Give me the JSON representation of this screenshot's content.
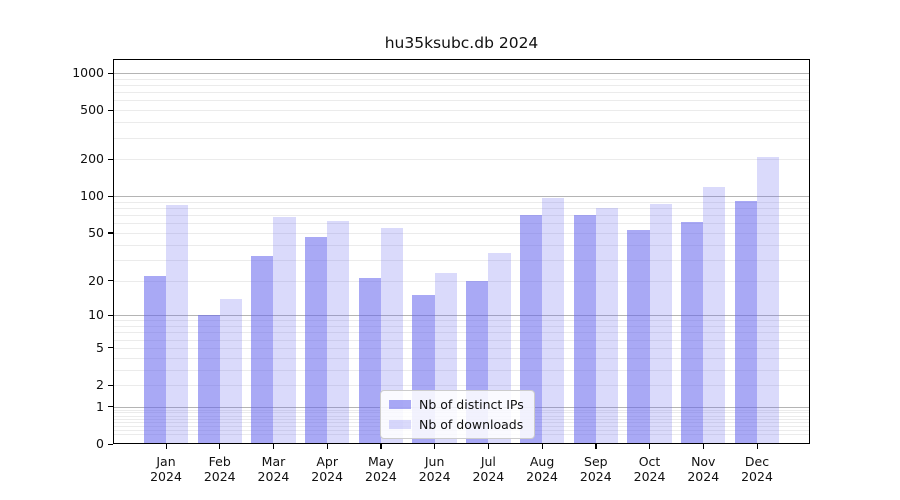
{
  "title": "hu35ksubc.db 2024",
  "chart_data": {
    "type": "bar",
    "title": "hu35ksubc.db 2024",
    "scale": "symlog",
    "categories": [
      "Jan",
      "Feb",
      "Mar",
      "Apr",
      "May",
      "Jun",
      "Jul",
      "Aug",
      "Sep",
      "Oct",
      "Nov",
      "Dec"
    ],
    "year": "2024",
    "series": [
      {
        "name": "Nb of distinct IPs",
        "color": "rgba(99,99,237,0.55)",
        "values": [
          22,
          10,
          32,
          46,
          21,
          15,
          20,
          70,
          70,
          53,
          62,
          92
        ]
      },
      {
        "name": "Nb of downloads",
        "color": "rgba(99,99,237,0.24)",
        "values": [
          85,
          14,
          68,
          63,
          55,
          23,
          34,
          97,
          80,
          86,
          118,
          210
        ]
      }
    ],
    "yticks": [
      0,
      1,
      2,
      5,
      10,
      20,
      50,
      100,
      200,
      500,
      1000
    ],
    "ylim": [
      0,
      1300
    ],
    "xlabel": "",
    "ylabel": "",
    "grid": "both",
    "legend_position": "bottom-center",
    "colors": {
      "major_grid": "#b4b4b4",
      "minor_grid": "#ebebeb",
      "axis": "#000000",
      "background": "#ffffff"
    }
  }
}
